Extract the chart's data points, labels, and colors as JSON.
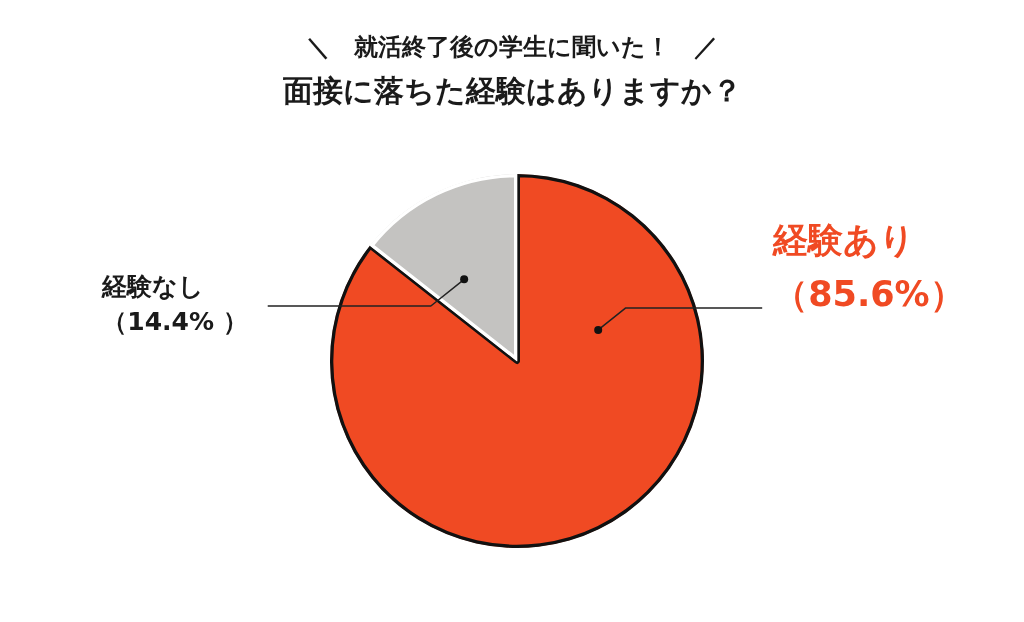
{
  "chart_data": {
    "type": "pie",
    "title": "面接に落ちた経験はありますか？",
    "subtitle": "＼　就活終了後の学生に聞いた！　／",
    "categories": [
      "経験あり",
      "経験なし"
    ],
    "values": [
      85.6,
      14.4
    ],
    "colors": [
      "#f04a23",
      "#c4c3c1"
    ],
    "value_labels": [
      "（85.6%）",
      "（14.4% ）"
    ]
  }
}
